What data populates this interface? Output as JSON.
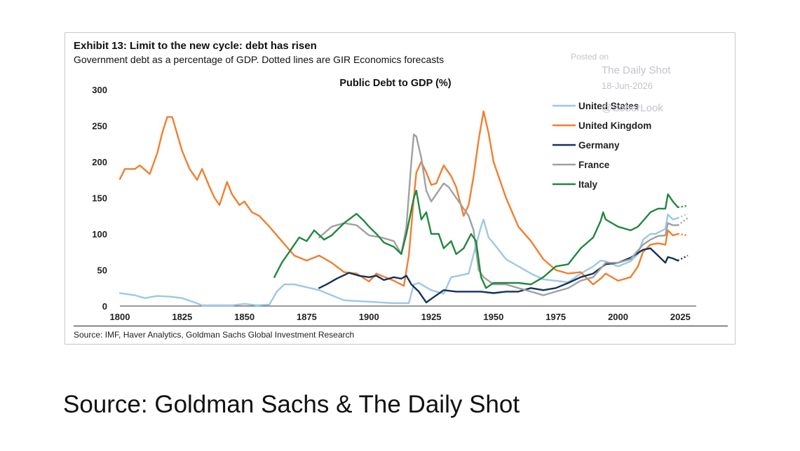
{
  "exhibit": {
    "title": "Exhibit 13: Limit to the new cycle: debt has risen",
    "subtitle": "Government debt as a percentage of GDP. Dotted lines are GIR Economics forecasts",
    "source": "Source: IMF, Haver Analytics, Goldman Sachs Global Investment Research"
  },
  "watermark": {
    "line1": "Posted on",
    "line2": "The Daily Shot",
    "line3": "18-Jun-2026",
    "line4": "@SoberLook"
  },
  "footer": {
    "caption": "Source: Goldman Sachs & The Daily Shot"
  },
  "chart_data": {
    "type": "line",
    "title": "Public Debt to GDP (%)",
    "xlabel": "",
    "ylabel": "",
    "xlim": [
      1800,
      2028
    ],
    "ylim": [
      0,
      300
    ],
    "x_ticks": [
      1800,
      1825,
      1850,
      1875,
      1900,
      1925,
      1950,
      1975,
      2000,
      2025
    ],
    "y_ticks": [
      0,
      50,
      100,
      150,
      200,
      250,
      300
    ],
    "grid": false,
    "legend_position": "top-right",
    "series": [
      {
        "name": "United States",
        "color": "#9dc8e8",
        "points": [
          [
            1800,
            18
          ],
          [
            1806,
            15
          ],
          [
            1810,
            11
          ],
          [
            1815,
            14
          ],
          [
            1820,
            13
          ],
          [
            1825,
            11
          ],
          [
            1830,
            5
          ],
          [
            1833,
            1
          ],
          [
            1840,
            1
          ],
          [
            1845,
            1
          ],
          [
            1850,
            3
          ],
          [
            1855,
            1
          ],
          [
            1860,
            2
          ],
          [
            1863,
            20
          ],
          [
            1866,
            30
          ],
          [
            1870,
            30
          ],
          [
            1875,
            26
          ],
          [
            1880,
            22
          ],
          [
            1885,
            15
          ],
          [
            1890,
            8
          ],
          [
            1895,
            7
          ],
          [
            1900,
            6
          ],
          [
            1905,
            5
          ],
          [
            1910,
            4
          ],
          [
            1916,
            4
          ],
          [
            1918,
            30
          ],
          [
            1920,
            32
          ],
          [
            1922,
            28
          ],
          [
            1925,
            22
          ],
          [
            1930,
            17
          ],
          [
            1933,
            40
          ],
          [
            1936,
            42
          ],
          [
            1940,
            45
          ],
          [
            1943,
            85
          ],
          [
            1945,
            110
          ],
          [
            1946,
            120
          ],
          [
            1948,
            95
          ],
          [
            1950,
            87
          ],
          [
            1955,
            65
          ],
          [
            1960,
            55
          ],
          [
            1965,
            45
          ],
          [
            1970,
            37
          ],
          [
            1975,
            35
          ],
          [
            1980,
            33
          ],
          [
            1985,
            45
          ],
          [
            1990,
            55
          ],
          [
            1993,
            63
          ],
          [
            1995,
            62
          ],
          [
            2000,
            55
          ],
          [
            2005,
            62
          ],
          [
            2008,
            72
          ],
          [
            2010,
            92
          ],
          [
            2013,
            100
          ],
          [
            2015,
            100
          ],
          [
            2019,
            107
          ],
          [
            2020,
            127
          ],
          [
            2022,
            120
          ],
          [
            2024,
            122
          ]
        ],
        "forecast": [
          [
            2024,
            122
          ],
          [
            2028,
            128
          ]
        ]
      },
      {
        "name": "United Kingdom",
        "color": "#f07f2f",
        "points": [
          [
            1800,
            176
          ],
          [
            1802,
            190
          ],
          [
            1806,
            190
          ],
          [
            1808,
            195
          ],
          [
            1812,
            183
          ],
          [
            1815,
            212
          ],
          [
            1817,
            240
          ],
          [
            1819,
            262
          ],
          [
            1821,
            262
          ],
          [
            1825,
            215
          ],
          [
            1828,
            190
          ],
          [
            1831,
            175
          ],
          [
            1833,
            190
          ],
          [
            1836,
            165
          ],
          [
            1838,
            150
          ],
          [
            1840,
            140
          ],
          [
            1843,
            172
          ],
          [
            1845,
            155
          ],
          [
            1848,
            140
          ],
          [
            1850,
            145
          ],
          [
            1853,
            130
          ],
          [
            1856,
            125
          ],
          [
            1860,
            110
          ],
          [
            1865,
            90
          ],
          [
            1870,
            70
          ],
          [
            1875,
            63
          ],
          [
            1880,
            70
          ],
          [
            1885,
            60
          ],
          [
            1890,
            47
          ],
          [
            1895,
            45
          ],
          [
            1900,
            34
          ],
          [
            1903,
            45
          ],
          [
            1905,
            42
          ],
          [
            1910,
            35
          ],
          [
            1914,
            28
          ],
          [
            1916,
            70
          ],
          [
            1918,
            150
          ],
          [
            1919,
            185
          ],
          [
            1921,
            200
          ],
          [
            1923,
            185
          ],
          [
            1925,
            168
          ],
          [
            1927,
            170
          ],
          [
            1930,
            195
          ],
          [
            1933,
            180
          ],
          [
            1935,
            165
          ],
          [
            1938,
            125
          ],
          [
            1940,
            140
          ],
          [
            1942,
            180
          ],
          [
            1944,
            230
          ],
          [
            1946,
            270
          ],
          [
            1948,
            240
          ],
          [
            1950,
            200
          ],
          [
            1955,
            150
          ],
          [
            1960,
            110
          ],
          [
            1965,
            90
          ],
          [
            1970,
            65
          ],
          [
            1975,
            50
          ],
          [
            1980,
            45
          ],
          [
            1985,
            47
          ],
          [
            1990,
            30
          ],
          [
            1993,
            38
          ],
          [
            1995,
            45
          ],
          [
            2000,
            35
          ],
          [
            2005,
            40
          ],
          [
            2008,
            55
          ],
          [
            2010,
            75
          ],
          [
            2013,
            85
          ],
          [
            2016,
            87
          ],
          [
            2019,
            85
          ],
          [
            2020,
            105
          ],
          [
            2022,
            98
          ],
          [
            2024,
            100
          ]
        ],
        "forecast": [
          [
            2024,
            100
          ],
          [
            2028,
            98
          ]
        ]
      },
      {
        "name": "Germany",
        "color": "#14325c",
        "points": [
          [
            1880,
            25
          ],
          [
            1883,
            30
          ],
          [
            1887,
            38
          ],
          [
            1892,
            46
          ],
          [
            1896,
            42
          ],
          [
            1900,
            40
          ],
          [
            1903,
            42
          ],
          [
            1906,
            36
          ],
          [
            1910,
            40
          ],
          [
            1913,
            38
          ],
          [
            1915,
            42
          ],
          [
            1917,
            30
          ],
          [
            1920,
            20
          ],
          [
            1923,
            5
          ],
          [
            1925,
            10
          ],
          [
            1930,
            22
          ],
          [
            1935,
            20
          ],
          [
            1940,
            20
          ],
          [
            1945,
            20
          ],
          [
            1950,
            18
          ],
          [
            1955,
            20
          ],
          [
            1960,
            20
          ],
          [
            1965,
            25
          ],
          [
            1970,
            22
          ],
          [
            1975,
            25
          ],
          [
            1980,
            32
          ],
          [
            1985,
            40
          ],
          [
            1990,
            45
          ],
          [
            1995,
            58
          ],
          [
            2000,
            60
          ],
          [
            2005,
            67
          ],
          [
            2010,
            78
          ],
          [
            2013,
            80
          ],
          [
            2016,
            70
          ],
          [
            2019,
            60
          ],
          [
            2020,
            68
          ],
          [
            2022,
            66
          ],
          [
            2024,
            63
          ]
        ],
        "forecast": [
          [
            2024,
            63
          ],
          [
            2028,
            70
          ]
        ]
      },
      {
        "name": "France",
        "color": "#a0a0a0",
        "points": [
          [
            1880,
            95
          ],
          [
            1885,
            110
          ],
          [
            1890,
            115
          ],
          [
            1895,
            112
          ],
          [
            1900,
            98
          ],
          [
            1905,
            95
          ],
          [
            1910,
            90
          ],
          [
            1913,
            72
          ],
          [
            1915,
            110
          ],
          [
            1917,
            200
          ],
          [
            1918,
            238
          ],
          [
            1919,
            235
          ],
          [
            1921,
            205
          ],
          [
            1923,
            160
          ],
          [
            1925,
            145
          ],
          [
            1927,
            155
          ],
          [
            1930,
            170
          ],
          [
            1932,
            165
          ],
          [
            1935,
            150
          ],
          [
            1940,
            125
          ],
          [
            1942,
            105
          ],
          [
            1944,
            50
          ],
          [
            1946,
            40
          ],
          [
            1948,
            35
          ],
          [
            1950,
            30
          ],
          [
            1955,
            30
          ],
          [
            1960,
            25
          ],
          [
            1965,
            20
          ],
          [
            1970,
            15
          ],
          [
            1975,
            20
          ],
          [
            1980,
            25
          ],
          [
            1985,
            35
          ],
          [
            1990,
            40
          ],
          [
            1995,
            60
          ],
          [
            2000,
            60
          ],
          [
            2005,
            65
          ],
          [
            2010,
            85
          ],
          [
            2013,
            92
          ],
          [
            2016,
            97
          ],
          [
            2019,
            98
          ],
          [
            2020,
            115
          ],
          [
            2022,
            112
          ],
          [
            2024,
            112
          ]
        ],
        "forecast": [
          [
            2024,
            112
          ],
          [
            2028,
            122
          ]
        ]
      },
      {
        "name": "Italy",
        "color": "#22873f",
        "points": [
          [
            1862,
            40
          ],
          [
            1865,
            60
          ],
          [
            1868,
            75
          ],
          [
            1872,
            95
          ],
          [
            1875,
            90
          ],
          [
            1878,
            105
          ],
          [
            1882,
            92
          ],
          [
            1885,
            98
          ],
          [
            1890,
            115
          ],
          [
            1895,
            128
          ],
          [
            1898,
            118
          ],
          [
            1900,
            110
          ],
          [
            1903,
            100
          ],
          [
            1906,
            88
          ],
          [
            1910,
            82
          ],
          [
            1913,
            72
          ],
          [
            1915,
            100
          ],
          [
            1918,
            150
          ],
          [
            1919,
            160
          ],
          [
            1921,
            120
          ],
          [
            1923,
            130
          ],
          [
            1925,
            100
          ],
          [
            1928,
            100
          ],
          [
            1930,
            80
          ],
          [
            1933,
            90
          ],
          [
            1935,
            72
          ],
          [
            1938,
            80
          ],
          [
            1941,
            100
          ],
          [
            1943,
            90
          ],
          [
            1945,
            40
          ],
          [
            1947,
            25
          ],
          [
            1950,
            32
          ],
          [
            1955,
            32
          ],
          [
            1960,
            32
          ],
          [
            1965,
            30
          ],
          [
            1970,
            40
          ],
          [
            1975,
            55
          ],
          [
            1980,
            58
          ],
          [
            1985,
            80
          ],
          [
            1990,
            95
          ],
          [
            1993,
            118
          ],
          [
            1994,
            130
          ],
          [
            1995,
            120
          ],
          [
            2000,
            110
          ],
          [
            2005,
            105
          ],
          [
            2008,
            110
          ],
          [
            2010,
            118
          ],
          [
            2013,
            130
          ],
          [
            2016,
            135
          ],
          [
            2019,
            135
          ],
          [
            2020,
            155
          ],
          [
            2022,
            145
          ],
          [
            2024,
            137
          ]
        ],
        "forecast": [
          [
            2024,
            137
          ],
          [
            2028,
            139
          ]
        ]
      }
    ]
  }
}
